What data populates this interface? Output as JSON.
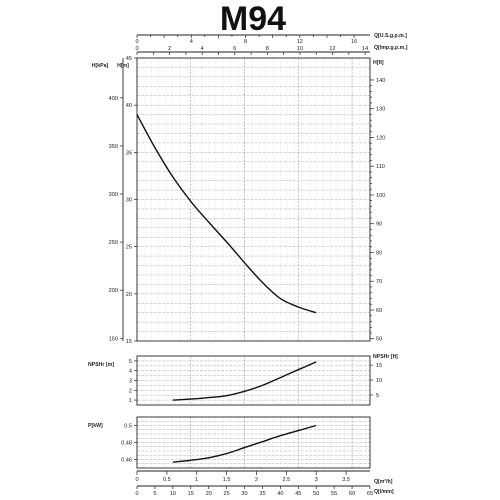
{
  "title": "M94",
  "x_axes": {
    "q_usgpm": {
      "label": "Q[U.S.g.p.m.]",
      "ticks": [
        0,
        4,
        8,
        12,
        16
      ]
    },
    "q_impgpm": {
      "label": "Q[Imp.g.p.m.]",
      "ticks": [
        0,
        2,
        4,
        6,
        8,
        10,
        12,
        14
      ]
    },
    "q_m3h": {
      "label": "Q[m³/h]",
      "ticks": [
        0,
        0.5,
        1,
        1.5,
        2,
        2.5,
        3,
        3.5,
        4
      ]
    },
    "q_lmin": {
      "label": "Q[l/min]",
      "ticks": [
        0,
        5,
        10,
        15,
        20,
        25,
        30,
        35,
        40,
        45,
        50,
        55,
        60,
        65
      ]
    }
  },
  "chart_data": [
    {
      "type": "line",
      "name": "head",
      "y_left_outer": {
        "label": "H[kPa]",
        "ticks": [
          150,
          200,
          250,
          300,
          350,
          400,
          450
        ]
      },
      "y_left_inner": {
        "label": "H[m]",
        "ticks": [
          15,
          20,
          25,
          30,
          35,
          40,
          45
        ]
      },
      "y_right": {
        "label": "H[ft]",
        "ticks": [
          50,
          60,
          70,
          80,
          90,
          100,
          110,
          120,
          130,
          140
        ]
      },
      "xlim": [
        0,
        65
      ],
      "ylim": [
        15,
        45
      ],
      "x": [
        0,
        5,
        10,
        15,
        20,
        25,
        30,
        35,
        40,
        45,
        50
      ],
      "y": [
        39,
        35.5,
        32.4,
        29.8,
        27.6,
        25.5,
        23.3,
        21.2,
        19.5,
        18.6,
        18.0
      ]
    },
    {
      "type": "line",
      "name": "npsh",
      "y_left": {
        "label": "NPSHr [m]",
        "ticks": [
          1,
          2,
          3,
          4,
          5
        ]
      },
      "y_right": {
        "label": "NPSHr [ft]",
        "ticks": [
          5,
          10,
          15
        ]
      },
      "xlim": [
        0,
        65
      ],
      "ylim": [
        0.5,
        5.5
      ],
      "x": [
        10,
        15,
        20,
        25,
        30,
        35,
        40,
        45,
        50
      ],
      "y": [
        1.0,
        1.1,
        1.25,
        1.45,
        1.9,
        2.5,
        3.3,
        4.1,
        4.9
      ]
    },
    {
      "type": "line",
      "name": "power",
      "y_left": {
        "label": "P[kW]",
        "ticks": [
          0.46,
          0.48,
          0.5
        ]
      },
      "xlim": [
        0,
        65
      ],
      "ylim": [
        0.45,
        0.51
      ],
      "x": [
        10,
        15,
        20,
        25,
        30,
        35,
        40,
        45,
        50
      ],
      "y": [
        0.457,
        0.459,
        0.462,
        0.467,
        0.474,
        0.481,
        0.488,
        0.494,
        0.5
      ]
    }
  ]
}
